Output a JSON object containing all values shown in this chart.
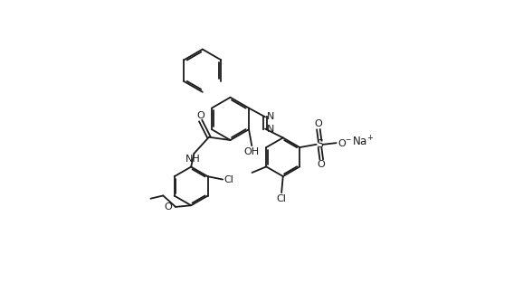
{
  "bg_color": "#ffffff",
  "line_color": "#1a1a1a",
  "lw": 1.3,
  "fs": 8.0,
  "fig_w": 5.78,
  "fig_h": 3.12,
  "dpi": 100,
  "xlim": [
    0,
    10.5
  ],
  "ylim": [
    -0.5,
    9.0
  ]
}
